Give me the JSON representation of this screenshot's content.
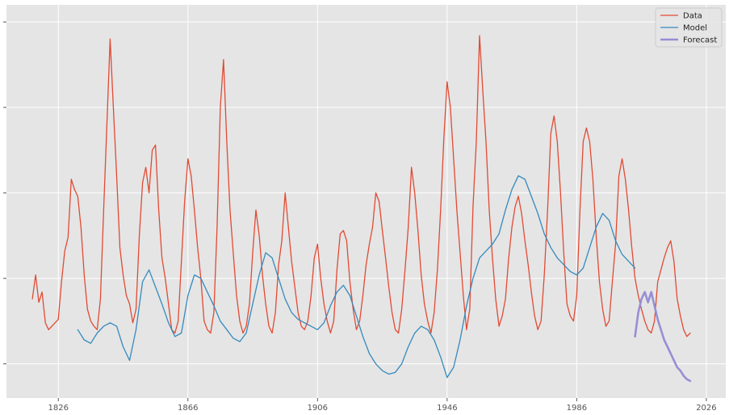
{
  "chart_data": {
    "type": "line",
    "title": "",
    "xlabel": "",
    "ylabel": "",
    "xlim": [
      1810,
      2032
    ],
    "ylim": [
      0,
      230
    ],
    "x_ticks": [
      1826,
      1866,
      1906,
      1946,
      1986,
      2026
    ],
    "y_ticks": [
      20,
      70,
      120,
      170,
      220
    ],
    "y_tick_labels_visible": false,
    "grid": true,
    "legend_position": "top-right",
    "series": [
      {
        "name": "Data",
        "color": "#e24a33",
        "line_width": 1.3,
        "points": [
          [
            1818,
            58
          ],
          [
            1819,
            72
          ],
          [
            1820,
            56
          ],
          [
            1821,
            62
          ],
          [
            1822,
            44
          ],
          [
            1823,
            40
          ],
          [
            1824,
            42
          ],
          [
            1826,
            46
          ],
          [
            1827,
            68
          ],
          [
            1828,
            86
          ],
          [
            1829,
            94
          ],
          [
            1830,
            128
          ],
          [
            1831,
            122
          ],
          [
            1832,
            118
          ],
          [
            1833,
            100
          ],
          [
            1834,
            72
          ],
          [
            1835,
            52
          ],
          [
            1836,
            45
          ],
          [
            1837,
            42
          ],
          [
            1838,
            40
          ],
          [
            1839,
            58
          ],
          [
            1840,
            110
          ],
          [
            1841,
            160
          ],
          [
            1842,
            210
          ],
          [
            1843,
            170
          ],
          [
            1844,
            130
          ],
          [
            1845,
            88
          ],
          [
            1846,
            72
          ],
          [
            1847,
            60
          ],
          [
            1848,
            55
          ],
          [
            1849,
            44
          ],
          [
            1850,
            52
          ],
          [
            1851,
            95
          ],
          [
            1852,
            126
          ],
          [
            1853,
            135
          ],
          [
            1854,
            120
          ],
          [
            1855,
            145
          ],
          [
            1856,
            148
          ],
          [
            1857,
            110
          ],
          [
            1858,
            82
          ],
          [
            1859,
            70
          ],
          [
            1860,
            55
          ],
          [
            1861,
            40
          ],
          [
            1862,
            38
          ],
          [
            1863,
            45
          ],
          [
            1864,
            80
          ],
          [
            1865,
            115
          ],
          [
            1866,
            140
          ],
          [
            1867,
            130
          ],
          [
            1868,
            110
          ],
          [
            1869,
            88
          ],
          [
            1870,
            70
          ],
          [
            1871,
            45
          ],
          [
            1872,
            40
          ],
          [
            1873,
            38
          ],
          [
            1874,
            50
          ],
          [
            1875,
            100
          ],
          [
            1876,
            170
          ],
          [
            1877,
            198
          ],
          [
            1878,
            150
          ],
          [
            1879,
            110
          ],
          [
            1880,
            85
          ],
          [
            1881,
            60
          ],
          [
            1882,
            45
          ],
          [
            1883,
            38
          ],
          [
            1884,
            42
          ],
          [
            1885,
            55
          ],
          [
            1886,
            85
          ],
          [
            1887,
            110
          ],
          [
            1888,
            95
          ],
          [
            1889,
            72
          ],
          [
            1890,
            55
          ],
          [
            1891,
            42
          ],
          [
            1892,
            38
          ],
          [
            1893,
            50
          ],
          [
            1894,
            78
          ],
          [
            1895,
            92
          ],
          [
            1896,
            120
          ],
          [
            1897,
            100
          ],
          [
            1898,
            80
          ],
          [
            1899,
            65
          ],
          [
            1900,
            50
          ],
          [
            1901,
            42
          ],
          [
            1902,
            40
          ],
          [
            1903,
            45
          ],
          [
            1904,
            60
          ],
          [
            1905,
            82
          ],
          [
            1906,
            90
          ],
          [
            1907,
            70
          ],
          [
            1908,
            55
          ],
          [
            1909,
            45
          ],
          [
            1910,
            38
          ],
          [
            1911,
            45
          ],
          [
            1912,
            75
          ],
          [
            1913,
            96
          ],
          [
            1914,
            98
          ],
          [
            1915,
            92
          ],
          [
            1916,
            68
          ],
          [
            1917,
            52
          ],
          [
            1918,
            40
          ],
          [
            1919,
            45
          ],
          [
            1920,
            60
          ],
          [
            1921,
            78
          ],
          [
            1922,
            90
          ],
          [
            1923,
            100
          ],
          [
            1924,
            120
          ],
          [
            1925,
            115
          ],
          [
            1926,
            98
          ],
          [
            1927,
            82
          ],
          [
            1928,
            65
          ],
          [
            1929,
            50
          ],
          [
            1930,
            40
          ],
          [
            1931,
            38
          ],
          [
            1932,
            52
          ],
          [
            1933,
            75
          ],
          [
            1934,
            100
          ],
          [
            1935,
            135
          ],
          [
            1936,
            120
          ],
          [
            1937,
            98
          ],
          [
            1938,
            72
          ],
          [
            1939,
            55
          ],
          [
            1940,
            45
          ],
          [
            1941,
            38
          ],
          [
            1942,
            50
          ],
          [
            1943,
            75
          ],
          [
            1944,
            110
          ],
          [
            1945,
            152
          ],
          [
            1946,
            185
          ],
          [
            1947,
            170
          ],
          [
            1948,
            140
          ],
          [
            1949,
            110
          ],
          [
            1950,
            85
          ],
          [
            1951,
            60
          ],
          [
            1952,
            40
          ],
          [
            1953,
            52
          ],
          [
            1954,
            112
          ],
          [
            1955,
            150
          ],
          [
            1956,
            212
          ],
          [
            1957,
            180
          ],
          [
            1958,
            150
          ],
          [
            1959,
            110
          ],
          [
            1960,
            82
          ],
          [
            1961,
            58
          ],
          [
            1962,
            42
          ],
          [
            1963,
            48
          ],
          [
            1964,
            58
          ],
          [
            1965,
            82
          ],
          [
            1966,
            100
          ],
          [
            1967,
            112
          ],
          [
            1968,
            118
          ],
          [
            1969,
            108
          ],
          [
            1970,
            92
          ],
          [
            1971,
            78
          ],
          [
            1972,
            62
          ],
          [
            1973,
            48
          ],
          [
            1974,
            40
          ],
          [
            1975,
            45
          ],
          [
            1976,
            72
          ],
          [
            1977,
            110
          ],
          [
            1978,
            155
          ],
          [
            1979,
            165
          ],
          [
            1980,
            150
          ],
          [
            1981,
            120
          ],
          [
            1982,
            85
          ],
          [
            1983,
            55
          ],
          [
            1984,
            48
          ],
          [
            1985,
            45
          ],
          [
            1986,
            60
          ],
          [
            1987,
            110
          ],
          [
            1988,
            150
          ],
          [
            1989,
            158
          ],
          [
            1990,
            150
          ],
          [
            1991,
            128
          ],
          [
            1992,
            95
          ],
          [
            1993,
            68
          ],
          [
            1994,
            52
          ],
          [
            1995,
            42
          ],
          [
            1996,
            45
          ],
          [
            1997,
            68
          ],
          [
            1998,
            90
          ],
          [
            1999,
            130
          ],
          [
            2000,
            140
          ],
          [
            2001,
            128
          ],
          [
            2002,
            110
          ],
          [
            2003,
            88
          ],
          [
            2004,
            70
          ],
          [
            2005,
            60
          ],
          [
            2006,
            52
          ],
          [
            2007,
            45
          ],
          [
            2008,
            40
          ],
          [
            2009,
            38
          ],
          [
            2010,
            45
          ],
          [
            2011,
            68
          ],
          [
            2012,
            75
          ],
          [
            2013,
            82
          ],
          [
            2014,
            88
          ],
          [
            2015,
            92
          ],
          [
            2016,
            80
          ],
          [
            2017,
            58
          ],
          [
            2018,
            48
          ],
          [
            2019,
            40
          ],
          [
            2020,
            36
          ],
          [
            2021,
            38
          ]
        ]
      },
      {
        "name": "Model",
        "color": "#348abd",
        "line_width": 1.3,
        "points": [
          [
            1832,
            40
          ],
          [
            1834,
            34
          ],
          [
            1836,
            32
          ],
          [
            1838,
            38
          ],
          [
            1840,
            42
          ],
          [
            1842,
            44
          ],
          [
            1844,
            42
          ],
          [
            1846,
            30
          ],
          [
            1848,
            22
          ],
          [
            1850,
            40
          ],
          [
            1852,
            68
          ],
          [
            1854,
            75
          ],
          [
            1856,
            65
          ],
          [
            1858,
            55
          ],
          [
            1860,
            44
          ],
          [
            1862,
            36
          ],
          [
            1864,
            38
          ],
          [
            1866,
            60
          ],
          [
            1868,
            72
          ],
          [
            1870,
            70
          ],
          [
            1872,
            62
          ],
          [
            1874,
            54
          ],
          [
            1876,
            45
          ],
          [
            1878,
            40
          ],
          [
            1880,
            35
          ],
          [
            1882,
            33
          ],
          [
            1884,
            38
          ],
          [
            1886,
            55
          ],
          [
            1888,
            72
          ],
          [
            1890,
            85
          ],
          [
            1892,
            82
          ],
          [
            1894,
            70
          ],
          [
            1896,
            58
          ],
          [
            1898,
            50
          ],
          [
            1900,
            46
          ],
          [
            1902,
            44
          ],
          [
            1904,
            42
          ],
          [
            1906,
            40
          ],
          [
            1908,
            44
          ],
          [
            1910,
            54
          ],
          [
            1912,
            62
          ],
          [
            1914,
            66
          ],
          [
            1916,
            60
          ],
          [
            1918,
            48
          ],
          [
            1920,
            36
          ],
          [
            1922,
            26
          ],
          [
            1924,
            20
          ],
          [
            1926,
            16
          ],
          [
            1928,
            14
          ],
          [
            1930,
            15
          ],
          [
            1932,
            20
          ],
          [
            1934,
            30
          ],
          [
            1936,
            38
          ],
          [
            1938,
            42
          ],
          [
            1940,
            40
          ],
          [
            1942,
            34
          ],
          [
            1944,
            24
          ],
          [
            1946,
            12
          ],
          [
            1948,
            18
          ],
          [
            1950,
            34
          ],
          [
            1952,
            54
          ],
          [
            1954,
            70
          ],
          [
            1956,
            82
          ],
          [
            1958,
            86
          ],
          [
            1960,
            90
          ],
          [
            1962,
            96
          ],
          [
            1964,
            110
          ],
          [
            1966,
            122
          ],
          [
            1968,
            130
          ],
          [
            1970,
            128
          ],
          [
            1972,
            118
          ],
          [
            1974,
            108
          ],
          [
            1976,
            96
          ],
          [
            1978,
            88
          ],
          [
            1980,
            82
          ],
          [
            1982,
            78
          ],
          [
            1984,
            74
          ],
          [
            1986,
            72
          ],
          [
            1988,
            76
          ],
          [
            1990,
            88
          ],
          [
            1992,
            100
          ],
          [
            1994,
            108
          ],
          [
            1996,
            104
          ],
          [
            1998,
            92
          ],
          [
            2000,
            84
          ],
          [
            2002,
            80
          ],
          [
            2004,
            76
          ]
        ]
      },
      {
        "name": "Forecast",
        "color": "#988ed5",
        "line_width": 2.6,
        "points": [
          [
            2004,
            36
          ],
          [
            2005,
            50
          ],
          [
            2006,
            58
          ],
          [
            2007,
            62
          ],
          [
            2008,
            56
          ],
          [
            2009,
            62
          ],
          [
            2010,
            54
          ],
          [
            2011,
            46
          ],
          [
            2012,
            40
          ],
          [
            2013,
            34
          ],
          [
            2014,
            30
          ],
          [
            2015,
            26
          ],
          [
            2016,
            22
          ],
          [
            2017,
            18
          ],
          [
            2018,
            16
          ],
          [
            2019,
            13
          ],
          [
            2020,
            11
          ],
          [
            2021,
            10
          ]
        ]
      }
    ]
  }
}
